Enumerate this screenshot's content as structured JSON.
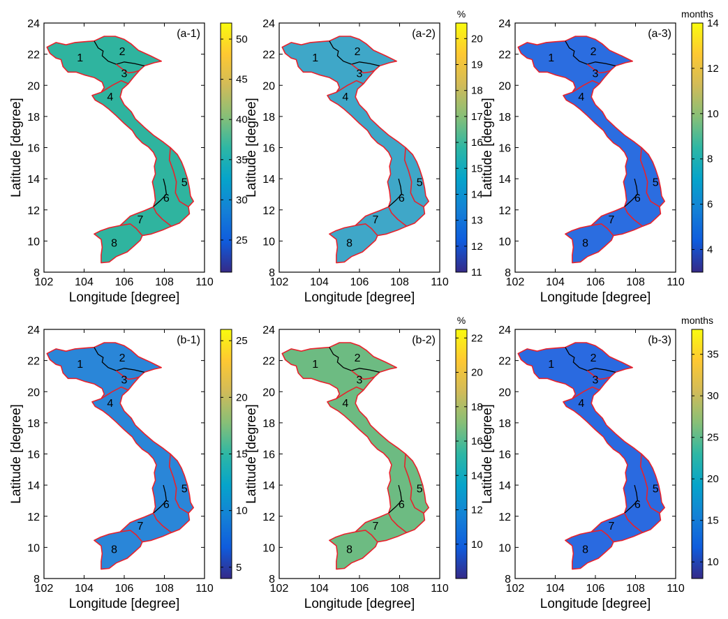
{
  "figure": {
    "x_axis": {
      "label": "Longitude [degree]",
      "range": [
        102,
        110
      ],
      "ticks": [
        102,
        104,
        106,
        108,
        110
      ]
    },
    "y_axis": {
      "label": "Latitude [degree]",
      "range": [
        8,
        24
      ],
      "ticks": [
        8,
        10,
        12,
        14,
        16,
        18,
        20,
        22,
        24
      ]
    },
    "colormap": "parula",
    "colormap_stops": [
      "#352a87",
      "#0f5cdd",
      "#1481d6",
      "#06a4ca",
      "#2eb7a4",
      "#87bf77",
      "#d1bb59",
      "#fec832",
      "#f9fb0e"
    ],
    "boundary_colors": {
      "north": "#000000",
      "coastal": "#e8212b"
    },
    "regions": [
      {
        "id": "1",
        "lon": 103.8,
        "lat": 21.8
      },
      {
        "id": "2",
        "lon": 105.9,
        "lat": 22.2
      },
      {
        "id": "3",
        "lon": 106.0,
        "lat": 20.8
      },
      {
        "id": "4",
        "lon": 105.3,
        "lat": 19.3
      },
      {
        "id": "5",
        "lon": 109.0,
        "lat": 13.8
      },
      {
        "id": "6",
        "lon": 108.1,
        "lat": 12.8
      },
      {
        "id": "7",
        "lon": 106.8,
        "lat": 11.4
      },
      {
        "id": "8",
        "lon": 105.5,
        "lat": 9.9
      }
    ],
    "panels": [
      {
        "label": "(a-1)",
        "unit": "",
        "colorbar": {
          "range": [
            21,
            52
          ],
          "ticks": [
            "25",
            "30",
            "35",
            "40",
            "45",
            "50"
          ]
        }
      },
      {
        "label": "(a-2)",
        "unit": "%",
        "colorbar": {
          "range": [
            11,
            20.6
          ],
          "ticks": [
            "11",
            "12",
            "13",
            "14",
            "15",
            "16",
            "17",
            "18",
            "19",
            "20"
          ]
        }
      },
      {
        "label": "(a-3)",
        "unit": "months",
        "colorbar": {
          "range": [
            3,
            14
          ],
          "ticks": [
            "4",
            "6",
            "8",
            "10",
            "12",
            "14"
          ]
        }
      },
      {
        "label": "(b-1)",
        "unit": "",
        "colorbar": {
          "range": [
            4,
            26
          ],
          "ticks": [
            "5",
            "10",
            "15",
            "20",
            "25"
          ]
        }
      },
      {
        "label": "(b-2)",
        "unit": "%",
        "colorbar": {
          "range": [
            8,
            22.5
          ],
          "ticks": [
            "10",
            "12",
            "14",
            "16",
            "18",
            "20",
            "22"
          ]
        }
      },
      {
        "label": "(b-3)",
        "unit": "months",
        "colorbar": {
          "range": [
            8,
            38
          ],
          "ticks": [
            "10",
            "15",
            "20",
            "25",
            "30",
            "35"
          ]
        }
      }
    ]
  }
}
